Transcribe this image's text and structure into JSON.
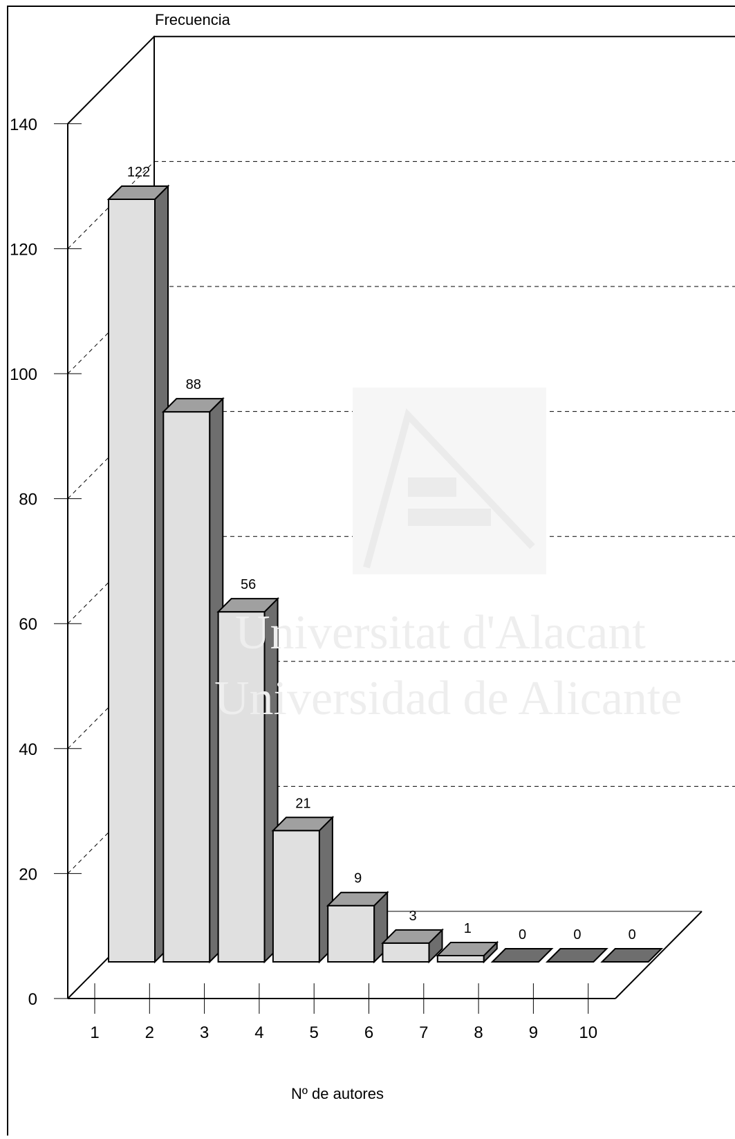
{
  "chart_data": {
    "type": "bar",
    "categories": [
      "1",
      "2",
      "3",
      "4",
      "5",
      "6",
      "7",
      "8",
      "9",
      "10"
    ],
    "values": [
      122,
      88,
      56,
      21,
      9,
      3,
      1,
      0,
      0,
      0
    ],
    "ylabel": "Frecuencia",
    "xlabel": "Nº de autores",
    "ylim": [
      0,
      140
    ],
    "yticks": [
      "0",
      "20",
      "40",
      "60",
      "80",
      "100",
      "120",
      "140"
    ],
    "grid": true,
    "style": "3d-bars",
    "colors": {
      "front": "#e0e0e0",
      "top": "#a0a0a0",
      "side": "#6e6e6e"
    }
  },
  "watermark": {
    "line1": "Universitat d'Alacant",
    "line2": "Universidad de Alicante"
  }
}
